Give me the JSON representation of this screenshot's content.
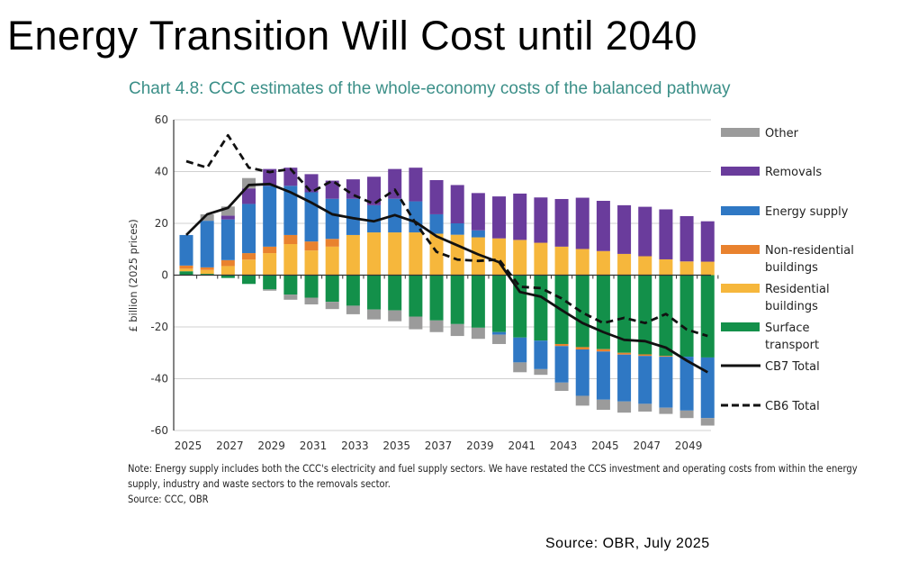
{
  "header": {
    "title": "Energy Transition Will Cost until 2040"
  },
  "footer": {
    "note": "Note: Energy supply includes both the CCC's electricity and fuel supply sectors. We have restated the CCS investment and operating costs from within the energy supply, industry and waste sectors to the removals sector.",
    "chart_source": "Source: CCC, OBR",
    "source": "Source: OBR, July 2025"
  },
  "chart_data": {
    "type": "bar",
    "stacked": true,
    "title": "Chart 4.8: CCC estimates of the whole-economy costs of the balanced pathway",
    "ylabel": "£ billion (2025 prices)",
    "xlabel": "",
    "ylim": [
      -60,
      60
    ],
    "yticks": [
      60,
      40,
      20,
      0,
      -20,
      -40,
      -60
    ],
    "xtick_labels": [
      "2025",
      "2027",
      "2029",
      "2031",
      "2033",
      "2035",
      "2037",
      "2039",
      "2041",
      "2043",
      "2045",
      "2047",
      "2049"
    ],
    "grid": true,
    "legend_position": "right",
    "categories": [
      "2025",
      "2026",
      "2027",
      "2028",
      "2029",
      "2030",
      "2031",
      "2032",
      "2033",
      "2034",
      "2035",
      "2036",
      "2037",
      "2038",
      "2039",
      "2040",
      "2041",
      "2042",
      "2043",
      "2044",
      "2045",
      "2046",
      "2047",
      "2048",
      "2049",
      "2050"
    ],
    "series": [
      {
        "name": "Surface transport",
        "color": "#13904a",
        "values": [
          1.5,
          0.5,
          -1.1,
          -3.4,
          -5.5,
          -7.5,
          -8.7,
          -10.3,
          -11.8,
          -13.3,
          -13.6,
          -16,
          -17.5,
          -18.9,
          -20.3,
          -22,
          -24.1,
          -25.3,
          -26.6,
          -27.8,
          -28.6,
          -30,
          -30.6,
          -31.2,
          -31.5,
          -31.8
        ]
      },
      {
        "name": "Residential buildings",
        "color": "#f6b73c",
        "values": [
          1,
          1.5,
          3.5,
          6,
          8.5,
          12,
          9.5,
          11,
          15.5,
          16.5,
          16.5,
          16.5,
          16,
          15.6,
          14.6,
          14.2,
          13.6,
          12.5,
          11,
          10.1,
          9.3,
          8.2,
          7.3,
          6.1,
          5.3,
          5.2
        ]
      },
      {
        "name": "Non-residential buildings",
        "color": "#e9822e",
        "values": [
          1.2,
          1,
          2.3,
          2.5,
          2.5,
          3.5,
          3.5,
          3,
          0,
          0,
          0,
          0,
          0,
          0,
          0,
          0,
          0,
          0,
          -0.8,
          -0.9,
          -0.9,
          -0.7,
          -0.6,
          -0.3,
          0,
          0
        ]
      },
      {
        "name": "Energy supply",
        "color": "#2f78c4",
        "values": [
          11.8,
          18,
          15.7,
          19,
          23.5,
          19,
          19,
          15.5,
          14,
          10.5,
          13,
          12,
          7.5,
          4.4,
          2.7,
          -1,
          -9.6,
          -11,
          -14.1,
          -17.9,
          -18.6,
          -18.1,
          -18.5,
          -19.7,
          -20.8,
          -23.4
        ]
      },
      {
        "name": "Removals",
        "color": "#6a3c9c",
        "values": [
          0,
          0,
          1.5,
          6,
          6.5,
          7,
          7,
          7,
          7.5,
          11,
          11.5,
          13,
          13.2,
          14.8,
          14.4,
          16.2,
          17.9,
          17.5,
          18.4,
          19.8,
          19.4,
          18.8,
          19.1,
          19.3,
          17.5,
          15.6
        ]
      },
      {
        "name": "Other",
        "color": "#9b9b9b",
        "values": [
          0,
          2.5,
          3.5,
          4,
          -0.5,
          -2,
          -2.6,
          -2.8,
          -3.3,
          -3.8,
          -4.2,
          -4.9,
          -4.5,
          -4.6,
          -4.3,
          -3.6,
          -3.8,
          -2.2,
          -3.2,
          -3.8,
          -3.9,
          -4.3,
          -3,
          -2.4,
          -2.9,
          -2.9
        ]
      }
    ],
    "lines": [
      {
        "name": "CB7 Total",
        "style": "solid",
        "color": "#111111",
        "values": [
          15.5,
          23.5,
          26,
          34.8,
          35.2,
          32,
          28,
          23.5,
          22,
          20.8,
          23.2,
          20.5,
          15,
          11.5,
          8,
          5,
          -6.5,
          -8.3,
          -13.5,
          -18.5,
          -22,
          -25,
          -25.5,
          -28,
          -33,
          -37.5
        ]
      },
      {
        "name": "CB6 Total",
        "style": "dashed",
        "color": "#111111",
        "values": [
          44,
          41.5,
          54,
          41.5,
          39.8,
          41,
          32,
          36.5,
          31,
          27.5,
          33,
          20,
          9,
          6,
          5.5,
          6,
          -4.5,
          -5,
          -9,
          -14.5,
          -18.5,
          -16.5,
          -18.5,
          -15,
          -21,
          -23.5
        ]
      }
    ],
    "legend": [
      {
        "label": "Other",
        "color": "#9b9b9b"
      },
      {
        "label": "Removals",
        "color": "#6a3c9c"
      },
      {
        "label": "Energy supply",
        "color": "#2f78c4"
      },
      {
        "label": "Non-residential buildings",
        "line1": "Non-residential",
        "line2": "buildings",
        "color": "#e9822e"
      },
      {
        "label": "Residential buildings",
        "line1": "Residential",
        "line2": "buildings",
        "color": "#f6b73c"
      },
      {
        "label": "Surface transport",
        "line1": "Surface",
        "line2": "transport",
        "color": "#13904a"
      },
      {
        "label": "CB7 Total",
        "style": "solid"
      },
      {
        "label": "CB6 Total",
        "style": "dashed"
      }
    ]
  }
}
